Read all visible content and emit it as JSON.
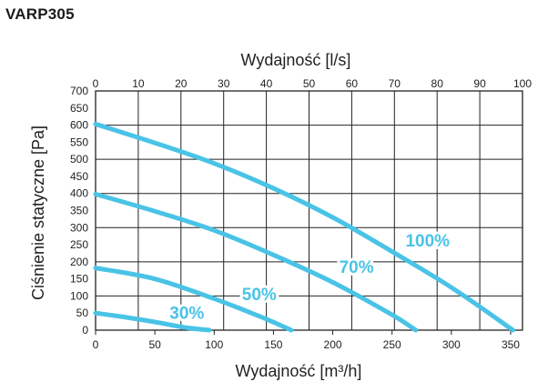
{
  "page": {
    "model": "VARP305"
  },
  "chart_data": {
    "type": "line",
    "title": "VARP305",
    "xlabel": "Wydajność [m³/h]",
    "x2label": "Wydajność [l/s]",
    "ylabel": "Ciśnienie statyczne [Pa]",
    "xlim": [
      0,
      360
    ],
    "x2lim": [
      0,
      100
    ],
    "ylim": [
      0,
      700
    ],
    "xticks": [
      0,
      50,
      100,
      150,
      200,
      250,
      300,
      350
    ],
    "x2ticks": [
      0,
      10,
      20,
      30,
      40,
      50,
      60,
      70,
      80,
      90,
      100
    ],
    "yticks": [
      0,
      50,
      100,
      150,
      200,
      250,
      300,
      350,
      400,
      450,
      500,
      550,
      600,
      650,
      700
    ],
    "grid": true,
    "line_color": "#49c3e6",
    "series": [
      {
        "name": "100%",
        "label_at": [
          280,
          245
        ],
        "x": [
          0,
          50,
          100,
          150,
          200,
          250,
          300,
          352
        ],
        "y": [
          603,
          548,
          488,
          415,
          330,
          230,
          125,
          0
        ]
      },
      {
        "name": "70%",
        "label_at": [
          220,
          168
        ],
        "x": [
          0,
          50,
          100,
          150,
          200,
          250,
          270
        ],
        "y": [
          398,
          348,
          292,
          220,
          140,
          45,
          0
        ]
      },
      {
        "name": "50%",
        "label_at": [
          138,
          88
        ],
        "x": [
          0,
          50,
          100,
          140,
          165
        ],
        "y": [
          182,
          150,
          92,
          38,
          0
        ]
      },
      {
        "name": "30%",
        "label_at": [
          77,
          33
        ],
        "x": [
          0,
          25,
          50,
          75,
          96
        ],
        "y": [
          50,
          38,
          24,
          8,
          0
        ]
      }
    ]
  }
}
